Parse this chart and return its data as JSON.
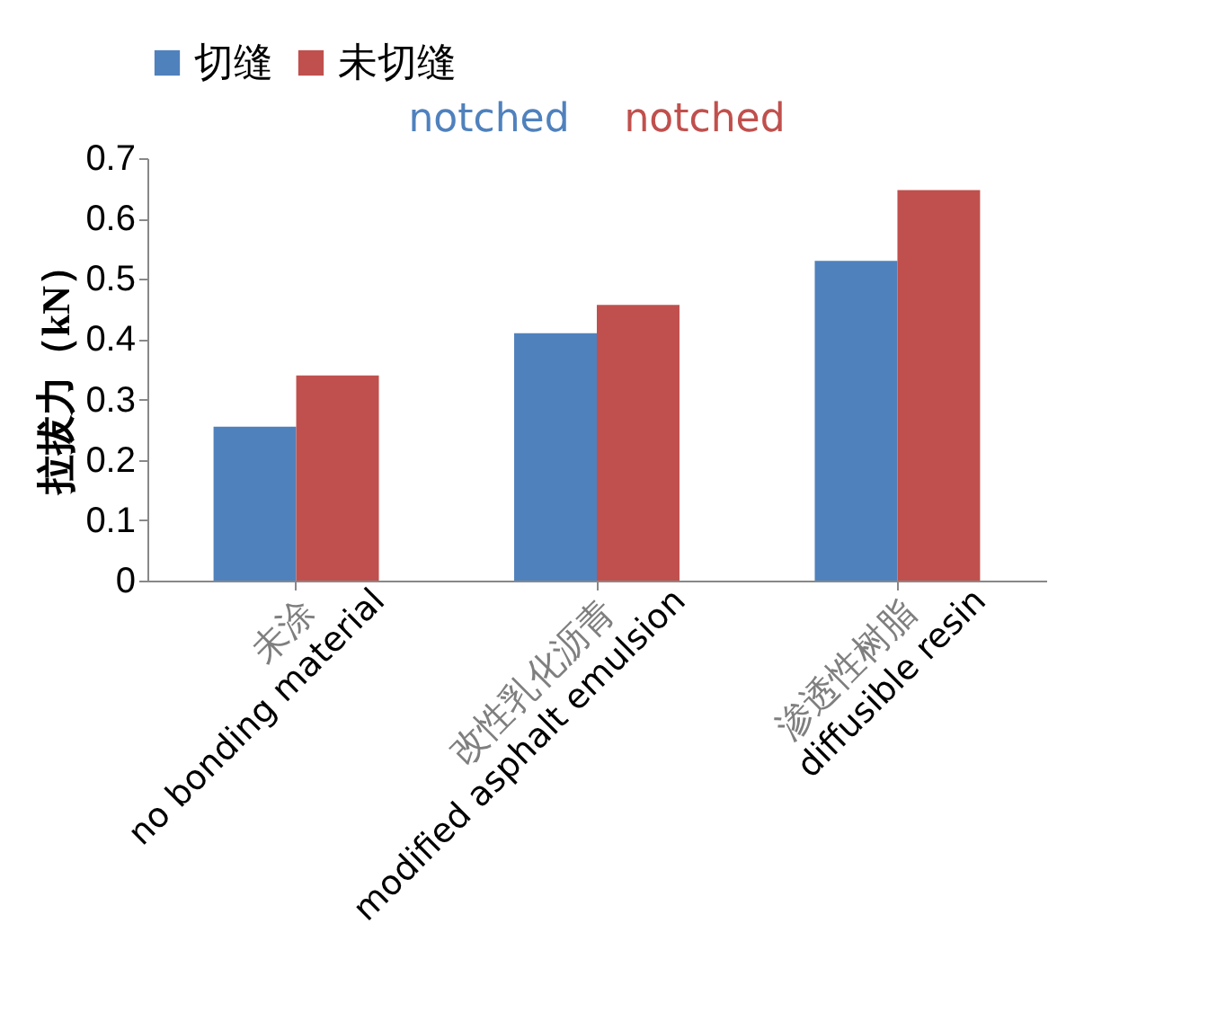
{
  "chart_data": {
    "type": "bar",
    "ylabel": "拉拔力（kN）",
    "categories": [
      "未涂",
      "改性乳化沥青",
      "渗透性树脂"
    ],
    "series": [
      {
        "name": "切缝",
        "color": "#4f81bd",
        "values": [
          0.255,
          0.41,
          0.53
        ]
      },
      {
        "name": "未切缝",
        "color": "#c0504d",
        "values": [
          0.34,
          0.457,
          0.647
        ]
      }
    ],
    "ylim": [
      0,
      0.7
    ],
    "yticks": [
      0,
      {
        "value": 0.1,
        "label": "0.1"
      },
      {
        "value": 0.2,
        "label": "0.2"
      },
      {
        "value": 0.3,
        "label": "0.3"
      },
      {
        "value": 0.4,
        "label": "0.4"
      },
      {
        "value": 0.5,
        "label": "0.5"
      },
      {
        "value": 0.6,
        "label": "0.6"
      },
      {
        "value": 0.7,
        "label": "0.7"
      }
    ],
    "grid": false,
    "legend": "top",
    "annotations": [
      "notched",
      "notched",
      "no bonding material",
      "modified asphalt emulsion",
      "diffusible resin"
    ]
  }
}
